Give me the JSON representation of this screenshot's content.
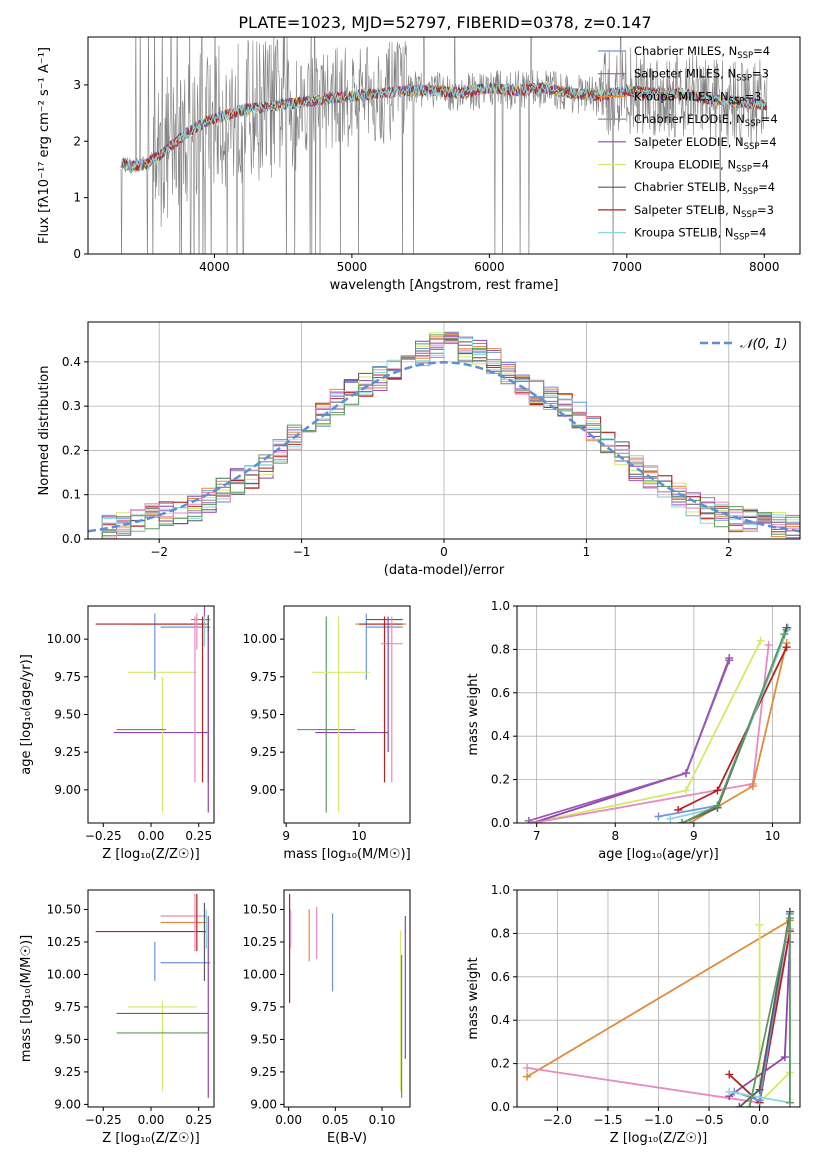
{
  "title": "PLATE=1023, MJD=52797, FIBERID=0378, z=0.147",
  "palette": {
    "Chabrier MILES": "#6f93d9",
    "Salpeter MILES": "#9b59b6",
    "Kroupa MILES": "#e08a3a",
    "Chabrier ELODIE": "#8c8c8c",
    "Salpeter ELODIE": "#8e44ad",
    "Kroupa ELODIE": "#d4e96b",
    "Chabrier STELIB": "#5a5a5a",
    "Salpeter STELIB": "#b22222",
    "Kroupa STELIB": "#8ad8df",
    "pink": "#e88bbf",
    "green": "#5d9a5d",
    "gaussian": "#5b8fd6",
    "data": "#808080"
  },
  "chart_data": [
    {
      "id": "spectrum",
      "type": "line",
      "xlabel": "wavelength [Angstrom, rest frame]",
      "ylabel": "Flux [fλ10⁻¹⁷ erg cm⁻² s⁻¹ A⁻¹]",
      "xlim": [
        3080,
        8260
      ],
      "ylim": [
        0,
        3.85
      ],
      "xticks": [
        4000,
        5000,
        6000,
        7000,
        8000
      ],
      "yticks": [
        0,
        1,
        2,
        3
      ],
      "grid": false,
      "legend": "top-right",
      "continuum": {
        "x": [
          3300,
          3400,
          3500,
          3600,
          3700,
          3800,
          3900,
          4000,
          4200,
          4500,
          4800,
          5000,
          5200,
          5400,
          5600,
          5800,
          6000,
          6200,
          6400,
          6600,
          6800,
          7000,
          7200,
          7400,
          7600,
          7800,
          8000
        ],
        "y": [
          1.65,
          1.55,
          1.6,
          1.75,
          1.95,
          2.15,
          2.3,
          2.4,
          2.55,
          2.65,
          2.75,
          2.8,
          2.85,
          2.9,
          2.9,
          2.85,
          2.95,
          2.9,
          2.95,
          2.85,
          2.8,
          2.9,
          2.85,
          2.85,
          2.75,
          2.7,
          2.65
        ]
      },
      "series": [
        {
          "name": "Chabrier MILES, N",
          "sub": "SSP",
          "suffix": "=4"
        },
        {
          "name": "Salpeter MILES, N",
          "sub": "SSP",
          "suffix": "=3"
        },
        {
          "name": "Kroupa MILES, N",
          "sub": "SSP",
          "suffix": "=3"
        },
        {
          "name": "Chabrier ELODIE, N",
          "sub": "SSP",
          "suffix": "=4"
        },
        {
          "name": "Salpeter ELODIE, N",
          "sub": "SSP",
          "suffix": "=4"
        },
        {
          "name": "Kroupa ELODIE, N",
          "sub": "SSP",
          "suffix": "=4"
        },
        {
          "name": "Chabrier STELIB, N",
          "sub": "SSP",
          "suffix": "=4"
        },
        {
          "name": "Salpeter STELIB, N",
          "sub": "SSP",
          "suffix": "=3"
        },
        {
          "name": "Kroupa STELIB, N",
          "sub": "SSP",
          "suffix": "=4"
        }
      ]
    },
    {
      "id": "residuals",
      "type": "line",
      "xlabel": "(data-model)/error",
      "ylabel": "Normed distribution",
      "xlim": [
        -2.5,
        2.5
      ],
      "ylim": [
        0,
        0.49
      ],
      "xticks": [
        -2,
        -1,
        0,
        1,
        2
      ],
      "yticks": [
        0.0,
        0.1,
        0.2,
        0.3,
        0.4
      ],
      "grid": true,
      "legend": "top-right",
      "legend_label": "𝒩(0, 1)",
      "bin_edges": [
        -2.5,
        -2.4,
        -2.3,
        -2.2,
        -2.1,
        -2.0,
        -1.9,
        -1.8,
        -1.7,
        -1.6,
        -1.5,
        -1.4,
        -1.3,
        -1.2,
        -1.1,
        -1.0,
        -0.9,
        -0.8,
        -0.7,
        -0.6,
        -0.5,
        -0.4,
        -0.3,
        -0.2,
        -0.1,
        0.0,
        0.1,
        0.2,
        0.3,
        0.4,
        0.5,
        0.6,
        0.7,
        0.8,
        0.9,
        1.0,
        1.1,
        1.2,
        1.3,
        1.4,
        1.5,
        1.6,
        1.7,
        1.8,
        1.9,
        2.0,
        2.1,
        2.2,
        2.3,
        2.4,
        2.5
      ],
      "base_counts": [
        0.02,
        0.025,
        0.03,
        0.04,
        0.05,
        0.055,
        0.06,
        0.07,
        0.09,
        0.11,
        0.13,
        0.14,
        0.16,
        0.2,
        0.23,
        0.26,
        0.28,
        0.31,
        0.33,
        0.35,
        0.36,
        0.38,
        0.4,
        0.42,
        0.44,
        0.44,
        0.43,
        0.42,
        0.4,
        0.38,
        0.35,
        0.33,
        0.32,
        0.3,
        0.28,
        0.25,
        0.22,
        0.19,
        0.16,
        0.14,
        0.12,
        0.1,
        0.08,
        0.065,
        0.055,
        0.045,
        0.04,
        0.035,
        0.03,
        0.025
      ]
    },
    {
      "id": "age_vs_Z",
      "type": "scatter",
      "xlabel": "Z [log₁₀(Z/Z☉)]",
      "ylabel": "age  [log₁₀(age/yr)]",
      "xlim": [
        -0.33,
        0.33
      ],
      "ylim": [
        8.78,
        10.22
      ],
      "xticks": [
        -0.25,
        0.0,
        0.25
      ],
      "xticklabels": [
        "−0.25",
        "0.00",
        "0.25"
      ],
      "yticks": [
        9.0,
        9.25,
        9.5,
        9.75,
        10.0
      ],
      "yticklabels": [
        "9.00",
        "9.25",
        "9.50",
        "9.75",
        "10.00"
      ],
      "grid": false,
      "crosses": [
        {
          "c": "#6f93d9",
          "x": 0.02,
          "y": 9.95,
          "xe": 0.0,
          "ye": 0.22
        },
        {
          "c": "#6f93d9",
          "x": 0.18,
          "y": 10.08,
          "xe": 0.13,
          "ye": 0.0
        },
        {
          "c": "#9b59b6",
          "x": 0.28,
          "y": 10.1,
          "xe": 0.0,
          "ye": 0.14
        },
        {
          "c": "#e08a3a",
          "x": 0.1,
          "y": 10.1,
          "xe": 0.2,
          "ye": 0.0
        },
        {
          "c": "#808080",
          "x": 0.26,
          "y": 10.13,
          "xe": 0.05,
          "ye": 0.0
        },
        {
          "c": "#8e44ad",
          "x": 0.055,
          "y": 9.38,
          "xe": 0.25,
          "ye": 0.0
        },
        {
          "c": "#d4e96b",
          "x": 0.06,
          "y": 9.78,
          "xe": 0.18,
          "ye": 0.0
        },
        {
          "c": "#d4e96b",
          "x": 0.06,
          "y": 9.3,
          "xe": 0.0,
          "ye": 0.45
        },
        {
          "c": "#5d9a5d",
          "x": -0.05,
          "y": 9.4,
          "xe": 0.13,
          "ye": 0.0
        },
        {
          "c": "#5d9a5d",
          "x": 0.3,
          "y": 9.6,
          "xe": 0.0,
          "ye": 0.55
        },
        {
          "c": "#b22222",
          "x": 0.0,
          "y": 10.1,
          "xe": 0.29,
          "ye": 0.0
        },
        {
          "c": "#b22222",
          "x": 0.27,
          "y": 9.6,
          "xe": 0.0,
          "ye": 0.55
        },
        {
          "c": "#e88bbf",
          "x": 0.23,
          "y": 9.6,
          "xe": 0.0,
          "ye": 0.55
        },
        {
          "c": "#e88bbf",
          "x": 0.24,
          "y": 10.05,
          "xe": 0.0,
          "ye": 0.12
        },
        {
          "c": "#8e44ad",
          "x": 0.3,
          "y": 9.5,
          "xe": 0.0,
          "ye": 0.65
        },
        {
          "c": "#8ad8df",
          "x": 0.28,
          "y": 10.05,
          "xe": 0.0,
          "ye": 0.1
        },
        {
          "c": "#5a5a5a",
          "x": 0.3,
          "y": 10.1,
          "xe": 0.0,
          "ye": 0.06
        }
      ]
    },
    {
      "id": "age_vs_mass",
      "type": "scatter",
      "xlabel": "mass [log₁₀(M/M☉)]",
      "ylabel": "",
      "xlim": [
        8.97,
        10.7
      ],
      "ylim": [
        8.78,
        10.22
      ],
      "xticks": [
        9,
        10
      ],
      "yticks": [
        9.0,
        9.25,
        9.5,
        9.75,
        10.0
      ],
      "yticklabels": [
        "9.00",
        "9.25",
        "9.50",
        "9.75",
        "10.00"
      ],
      "grid": false,
      "crosses": [
        {
          "c": "#6f93d9",
          "x": 10.1,
          "y": 9.95,
          "xe": 0.0,
          "ye": 0.22
        },
        {
          "c": "#6f93d9",
          "x": 10.35,
          "y": 10.08,
          "xe": 0.25,
          "ye": 0.0
        },
        {
          "c": "#e08a3a",
          "x": 10.3,
          "y": 10.1,
          "xe": 0.35,
          "ye": 0.0
        },
        {
          "c": "#5a5a5a",
          "x": 10.35,
          "y": 10.13,
          "xe": 0.25,
          "ye": 0.0
        },
        {
          "c": "#5d9a5d",
          "x": 9.55,
          "y": 9.4,
          "xe": 0.4,
          "ye": 0.0
        },
        {
          "c": "#5d9a5d",
          "x": 9.55,
          "y": 9.5,
          "xe": 0.0,
          "ye": 0.65
        },
        {
          "c": "#8e44ad",
          "x": 9.9,
          "y": 9.38,
          "xe": 0.5,
          "ye": 0.0
        },
        {
          "c": "#d4e96b",
          "x": 9.75,
          "y": 9.78,
          "xe": 0.4,
          "ye": 0.0
        },
        {
          "c": "#d4e96b",
          "x": 9.72,
          "y": 9.5,
          "xe": 0.0,
          "ye": 0.65
        },
        {
          "c": "#b22222",
          "x": 10.3,
          "y": 10.1,
          "xe": 0.3,
          "ye": 0.0
        },
        {
          "c": "#b22222",
          "x": 10.35,
          "y": 9.6,
          "xe": 0.0,
          "ye": 0.55
        },
        {
          "c": "#e88bbf",
          "x": 10.45,
          "y": 9.6,
          "xe": 0.0,
          "ye": 0.55
        },
        {
          "c": "#e88bbf",
          "x": 10.45,
          "y": 9.97,
          "xe": 0.15,
          "ye": 0.0
        },
        {
          "c": "#8e44ad",
          "x": 10.4,
          "y": 9.7,
          "xe": 0.0,
          "ye": 0.45
        }
      ]
    },
    {
      "id": "weight_vs_age",
      "type": "line",
      "xlabel": "age  [log₁₀(age/yr)]",
      "ylabel": "mass weight",
      "xlim": [
        6.75,
        10.35
      ],
      "ylim": [
        0,
        1
      ],
      "xticks": [
        7,
        8,
        9,
        10
      ],
      "yticks": [
        0.0,
        0.2,
        0.4,
        0.6,
        0.8,
        1.0
      ],
      "grid": true,
      "series": [
        {
          "c": "#d4e96b",
          "x": [
            6.92,
            8.9,
            9.85
          ],
          "y": [
            0.0,
            0.15,
            0.84
          ]
        },
        {
          "c": "#8e44ad",
          "x": [
            6.95,
            8.9,
            9.45
          ],
          "y": [
            0.0,
            0.23,
            0.76
          ]
        },
        {
          "c": "#9b59b6",
          "x": [
            6.9,
            8.9,
            9.45
          ],
          "y": [
            0.01,
            0.23,
            0.75
          ]
        },
        {
          "c": "#e88bbf",
          "x": [
            6.95,
            9.75,
            9.95
          ],
          "y": [
            0.0,
            0.18,
            0.82
          ]
        },
        {
          "c": "#e08a3a",
          "x": [
            8.95,
            9.75,
            10.18
          ],
          "y": [
            0.0,
            0.17,
            0.83
          ]
        },
        {
          "c": "#b22222",
          "x": [
            8.8,
            9.3,
            10.18
          ],
          "y": [
            0.06,
            0.15,
            0.81
          ]
        },
        {
          "c": "#6f93d9",
          "x": [
            8.55,
            9.3,
            10.18
          ],
          "y": [
            0.03,
            0.08,
            0.89
          ]
        },
        {
          "c": "#8ad8df",
          "x": [
            8.7,
            9.3,
            10.2
          ],
          "y": [
            0.02,
            0.07,
            0.9
          ]
        },
        {
          "c": "#5a5a5a",
          "x": [
            8.85,
            9.3,
            10.18
          ],
          "y": [
            0.0,
            0.07,
            0.9
          ]
        },
        {
          "c": "#5d9a5d",
          "x": [
            8.85,
            9.3,
            10.15
          ],
          "y": [
            0.0,
            0.08,
            0.87
          ]
        }
      ]
    },
    {
      "id": "mass_vs_Z",
      "type": "scatter",
      "xlabel": "Z [log₁₀(Z/Z☉)]",
      "ylabel": "mass [log₁₀(M/M☉)]",
      "xlim": [
        -0.33,
        0.33
      ],
      "ylim": [
        8.98,
        10.65
      ],
      "xticks": [
        -0.25,
        0.0,
        0.25
      ],
      "xticklabels": [
        "−0.25",
        "0.00",
        "0.25"
      ],
      "yticks": [
        9.0,
        9.25,
        9.5,
        9.75,
        10.0,
        10.25,
        10.5
      ],
      "yticklabels": [
        "9.00",
        "9.25",
        "9.50",
        "9.75",
        "10.00",
        "10.25",
        "10.50"
      ],
      "grid": false,
      "crosses": [
        {
          "c": "#6f93d9",
          "x": 0.02,
          "y": 10.1,
          "xe": 0.0,
          "ye": 0.15
        },
        {
          "c": "#6f93d9",
          "x": 0.18,
          "y": 10.09,
          "xe": 0.13,
          "ye": 0.0
        },
        {
          "c": "#e88bbf",
          "x": 0.17,
          "y": 10.45,
          "xe": 0.12,
          "ye": 0.0
        },
        {
          "c": "#e08a3a",
          "x": 0.17,
          "y": 10.4,
          "xe": 0.12,
          "ye": 0.0
        },
        {
          "c": "#b22222",
          "x": 0.0,
          "y": 10.33,
          "xe": 0.29,
          "ye": 0.0
        },
        {
          "c": "#b22222",
          "x": 0.24,
          "y": 10.4,
          "xe": 0.0,
          "ye": 0.22
        },
        {
          "c": "#e88bbf",
          "x": 0.23,
          "y": 10.4,
          "xe": 0.0,
          "ye": 0.22
        },
        {
          "c": "#d4e96b",
          "x": 0.06,
          "y": 9.75,
          "xe": 0.18,
          "ye": 0.0
        },
        {
          "c": "#d4e96b",
          "x": 0.06,
          "y": 9.45,
          "xe": 0.0,
          "ye": 0.35
        },
        {
          "c": "#8e44ad",
          "x": 0.06,
          "y": 9.7,
          "xe": 0.24,
          "ye": 0.0
        },
        {
          "c": "#5d9a5d",
          "x": 0.06,
          "y": 9.55,
          "xe": 0.24,
          "ye": 0.0
        },
        {
          "c": "#8e44ad",
          "x": 0.3,
          "y": 9.75,
          "xe": 0.0,
          "ye": 0.7
        },
        {
          "c": "#5a5a5a",
          "x": 0.28,
          "y": 10.25,
          "xe": 0.0,
          "ye": 0.3
        },
        {
          "c": "#8ad8df",
          "x": 0.29,
          "y": 10.35,
          "xe": 0.0,
          "ye": 0.15
        }
      ]
    },
    {
      "id": "mass_vs_EBV",
      "type": "scatter",
      "xlabel": "E(B-V)",
      "ylabel": "",
      "xlim": [
        -0.005,
        0.13
      ],
      "ylim": [
        8.98,
        10.65
      ],
      "xticks": [
        0.0,
        0.05,
        0.1
      ],
      "xticklabels": [
        "0.00",
        "0.05",
        "0.10"
      ],
      "yticks": [
        9.0,
        9.25,
        9.5,
        9.75,
        10.0,
        10.25,
        10.5
      ],
      "yticklabels": [
        "9.00",
        "9.25",
        "9.50",
        "9.75",
        "10.00",
        "10.25",
        "10.50"
      ],
      "grid": false,
      "crosses": [
        {
          "c": "#b22222",
          "x": 0.001,
          "y": 10.2,
          "xe": 0.0,
          "ye": 0.42
        },
        {
          "c": "#e88bbf",
          "x": 0.002,
          "y": 10.35,
          "xe": 0.0,
          "ye": 0.15
        },
        {
          "c": "#e08a3a",
          "x": 0.022,
          "y": 10.3,
          "xe": 0.0,
          "ye": 0.2
        },
        {
          "c": "#e88bbf",
          "x": 0.03,
          "y": 10.32,
          "xe": 0.0,
          "ye": 0.2
        },
        {
          "c": "#6f93d9",
          "x": 0.047,
          "y": 10.17,
          "xe": 0.0,
          "ye": 0.3
        },
        {
          "c": "#d4e96b",
          "x": 0.12,
          "y": 9.72,
          "xe": 0.0,
          "ye": 0.62
        },
        {
          "c": "#5d9a5d",
          "x": 0.121,
          "y": 9.6,
          "xe": 0.0,
          "ye": 0.55
        },
        {
          "c": "#8e44ad",
          "x": 0.125,
          "y": 9.9,
          "xe": 0.0,
          "ye": 0.55
        }
      ]
    },
    {
      "id": "weight_vs_Z",
      "type": "line",
      "xlabel": "Z [log₁₀(Z/Z☉)]",
      "ylabel": "mass weight",
      "xlim": [
        -2.4,
        0.4
      ],
      "ylim": [
        0,
        1
      ],
      "xticks": [
        -2.0,
        -1.5,
        -1.0,
        -0.5,
        0.0
      ],
      "xticklabels": [
        "−2.0",
        "−1.5",
        "−1.0",
        "−0.5",
        "0.0"
      ],
      "yticks": [
        0.0,
        0.2,
        0.4,
        0.6,
        0.8,
        1.0
      ],
      "grid": true,
      "series": [
        {
          "c": "#e08a3a",
          "x": [
            -2.3,
            0.3
          ],
          "y": [
            0.14,
            0.86
          ]
        },
        {
          "c": "#e88bbf",
          "x": [
            -2.3,
            0.0,
            0.3
          ],
          "y": [
            0.18,
            0.02,
            0.82
          ]
        },
        {
          "c": "#d4e96b",
          "x": [
            0.0,
            0.0,
            0.3
          ],
          "y": [
            0.84,
            0.02,
            0.16
          ]
        },
        {
          "c": "#8e44ad",
          "x": [
            -0.3,
            0.25,
            0.3
          ],
          "y": [
            0.05,
            0.23,
            0.76
          ]
        },
        {
          "c": "#b22222",
          "x": [
            -0.3,
            0.0,
            0.3
          ],
          "y": [
            0.15,
            0.02,
            0.81
          ]
        },
        {
          "c": "#6f93d9",
          "x": [
            -0.25,
            0.0,
            0.3
          ],
          "y": [
            0.07,
            0.03,
            0.89
          ]
        },
        {
          "c": "#8ad8df",
          "x": [
            -0.3,
            0.3,
            0.3
          ],
          "y": [
            0.07,
            0.02,
            0.9
          ]
        },
        {
          "c": "#5a5a5a",
          "x": [
            -0.2,
            0.0,
            0.3
          ],
          "y": [
            0.0,
            0.08,
            0.9
          ]
        },
        {
          "c": "#5d9a5d",
          "x": [
            -0.1,
            0.3,
            0.3
          ],
          "y": [
            0.0,
            0.87,
            0.02
          ]
        }
      ]
    }
  ]
}
